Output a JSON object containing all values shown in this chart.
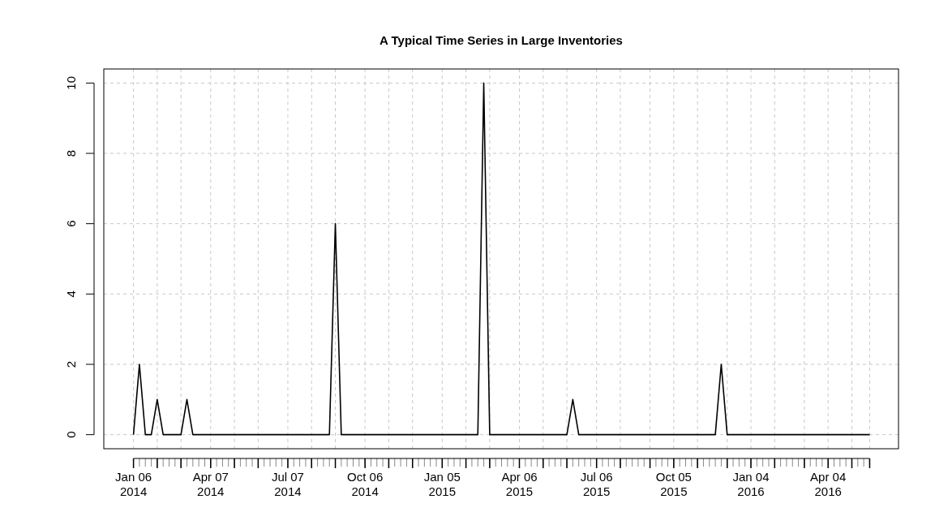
{
  "chart_data": {
    "type": "line",
    "title": "A Typical Time Series in Large Inventories",
    "x": [
      "2014-01-06",
      "2014-01-13",
      "2014-01-20",
      "2014-01-27",
      "2014-02-03",
      "2014-02-10",
      "2014-02-17",
      "2014-02-24",
      "2014-03-03",
      "2014-03-10",
      "2014-03-17",
      "2014-03-24",
      "2014-03-31",
      "2014-04-07",
      "2014-04-14",
      "2014-04-21",
      "2014-04-28",
      "2014-05-05",
      "2014-05-12",
      "2014-05-19",
      "2014-05-26",
      "2014-06-02",
      "2014-06-09",
      "2014-06-16",
      "2014-06-23",
      "2014-06-30",
      "2014-07-07",
      "2014-07-14",
      "2014-07-21",
      "2014-07-28",
      "2014-08-04",
      "2014-08-11",
      "2014-08-18",
      "2014-08-25",
      "2014-09-01",
      "2014-09-08",
      "2014-09-15",
      "2014-09-22",
      "2014-09-29",
      "2014-10-06",
      "2014-10-13",
      "2014-10-20",
      "2014-10-27",
      "2014-11-03",
      "2014-11-10",
      "2014-11-17",
      "2014-11-24",
      "2014-12-01",
      "2014-12-08",
      "2014-12-15",
      "2014-12-22",
      "2014-12-29",
      "2015-01-05",
      "2015-01-12",
      "2015-01-19",
      "2015-01-26",
      "2015-02-02",
      "2015-02-09",
      "2015-02-16",
      "2015-02-23",
      "2015-03-02",
      "2015-03-09",
      "2015-03-16",
      "2015-03-23",
      "2015-03-30",
      "2015-04-06",
      "2015-04-13",
      "2015-04-20",
      "2015-04-27",
      "2015-05-04",
      "2015-05-11",
      "2015-05-18",
      "2015-05-25",
      "2015-06-01",
      "2015-06-08",
      "2015-06-15",
      "2015-06-22",
      "2015-06-29",
      "2015-07-06",
      "2015-07-13",
      "2015-07-20",
      "2015-07-27",
      "2015-08-03",
      "2015-08-10",
      "2015-08-17",
      "2015-08-24",
      "2015-08-31",
      "2015-09-07",
      "2015-09-14",
      "2015-09-21",
      "2015-09-28",
      "2015-10-05",
      "2015-10-12",
      "2015-10-19",
      "2015-10-26",
      "2015-11-02",
      "2015-11-09",
      "2015-11-16",
      "2015-11-23",
      "2015-11-30",
      "2015-12-07",
      "2015-12-14",
      "2015-12-21",
      "2015-12-28",
      "2016-01-04",
      "2016-01-11",
      "2016-01-18",
      "2016-01-25",
      "2016-02-01",
      "2016-02-08",
      "2016-02-15",
      "2016-02-22",
      "2016-02-29",
      "2016-03-07",
      "2016-03-14",
      "2016-03-21",
      "2016-03-28",
      "2016-04-04",
      "2016-04-11",
      "2016-04-18",
      "2016-04-25",
      "2016-05-02",
      "2016-05-09",
      "2016-05-16",
      "2016-05-23"
    ],
    "series": [
      {
        "color": "#000000",
        "values": [
          0,
          2,
          0,
          0,
          1,
          0,
          0,
          0,
          0,
          1,
          0,
          0,
          0,
          0,
          0,
          0,
          0,
          0,
          0,
          0,
          0,
          0,
          0,
          0,
          0,
          0,
          0,
          0,
          0,
          0,
          0,
          0,
          0,
          0,
          6,
          0,
          0,
          0,
          0,
          0,
          0,
          0,
          0,
          0,
          0,
          0,
          0,
          0,
          0,
          0,
          0,
          0,
          0,
          0,
          0,
          0,
          0,
          0,
          0,
          10,
          0,
          0,
          0,
          0,
          0,
          0,
          0,
          0,
          0,
          0,
          0,
          0,
          0,
          0,
          1,
          0,
          0,
          0,
          0,
          0,
          0,
          0,
          0,
          0,
          0,
          0,
          0,
          0,
          0,
          0,
          0,
          0,
          0,
          0,
          0,
          0,
          0,
          0,
          0,
          2,
          0,
          0,
          0,
          0,
          0,
          0,
          0,
          0,
          0,
          0,
          0,
          0,
          0,
          0,
          0,
          0,
          0,
          0,
          0,
          0,
          0,
          0,
          0,
          0,
          0
        ]
      }
    ],
    "xlim": [
      "2013-12-02",
      "2016-06-26"
    ],
    "xticks": [
      {
        "value": "2014-01-06",
        "label": "Jan 06\n2014"
      },
      {
        "value": "2014-02-03",
        "label": null
      },
      {
        "value": "2014-03-03",
        "label": null
      },
      {
        "value": "2014-04-07",
        "label": "Apr 07\n2014"
      },
      {
        "value": "2014-05-05",
        "label": null
      },
      {
        "value": "2014-06-02",
        "label": null
      },
      {
        "value": "2014-07-07",
        "label": "Jul 07\n2014"
      },
      {
        "value": "2014-08-04",
        "label": null
      },
      {
        "value": "2014-09-01",
        "label": null
      },
      {
        "value": "2014-10-06",
        "label": "Oct 06\n2014"
      },
      {
        "value": "2014-11-03",
        "label": null
      },
      {
        "value": "2014-12-01",
        "label": null
      },
      {
        "value": "2015-01-05",
        "label": "Jan 05\n2015"
      },
      {
        "value": "2015-02-02",
        "label": null
      },
      {
        "value": "2015-03-02",
        "label": null
      },
      {
        "value": "2015-04-06",
        "label": "Apr 06\n2015"
      },
      {
        "value": "2015-05-04",
        "label": null
      },
      {
        "value": "2015-06-01",
        "label": null
      },
      {
        "value": "2015-07-06",
        "label": "Jul 06\n2015"
      },
      {
        "value": "2015-08-03",
        "label": null
      },
      {
        "value": "2015-09-07",
        "label": null
      },
      {
        "value": "2015-10-05",
        "label": "Oct 05\n2015"
      },
      {
        "value": "2015-11-02",
        "label": null
      },
      {
        "value": "2015-12-07",
        "label": null
      },
      {
        "value": "2016-01-04",
        "label": "Jan 04\n2016"
      },
      {
        "value": "2016-02-01",
        "label": null
      },
      {
        "value": "2016-03-07",
        "label": null
      },
      {
        "value": "2016-04-04",
        "label": "Apr 04\n2016"
      },
      {
        "value": "2016-05-02",
        "label": null
      },
      {
        "value": "2016-05-23",
        "label": null
      }
    ],
    "ylim": [
      -0.4,
      10.4
    ],
    "yticks": [
      0,
      2,
      4,
      6,
      8,
      10
    ],
    "grid": true,
    "marker": "none",
    "line_style": "solid"
  }
}
